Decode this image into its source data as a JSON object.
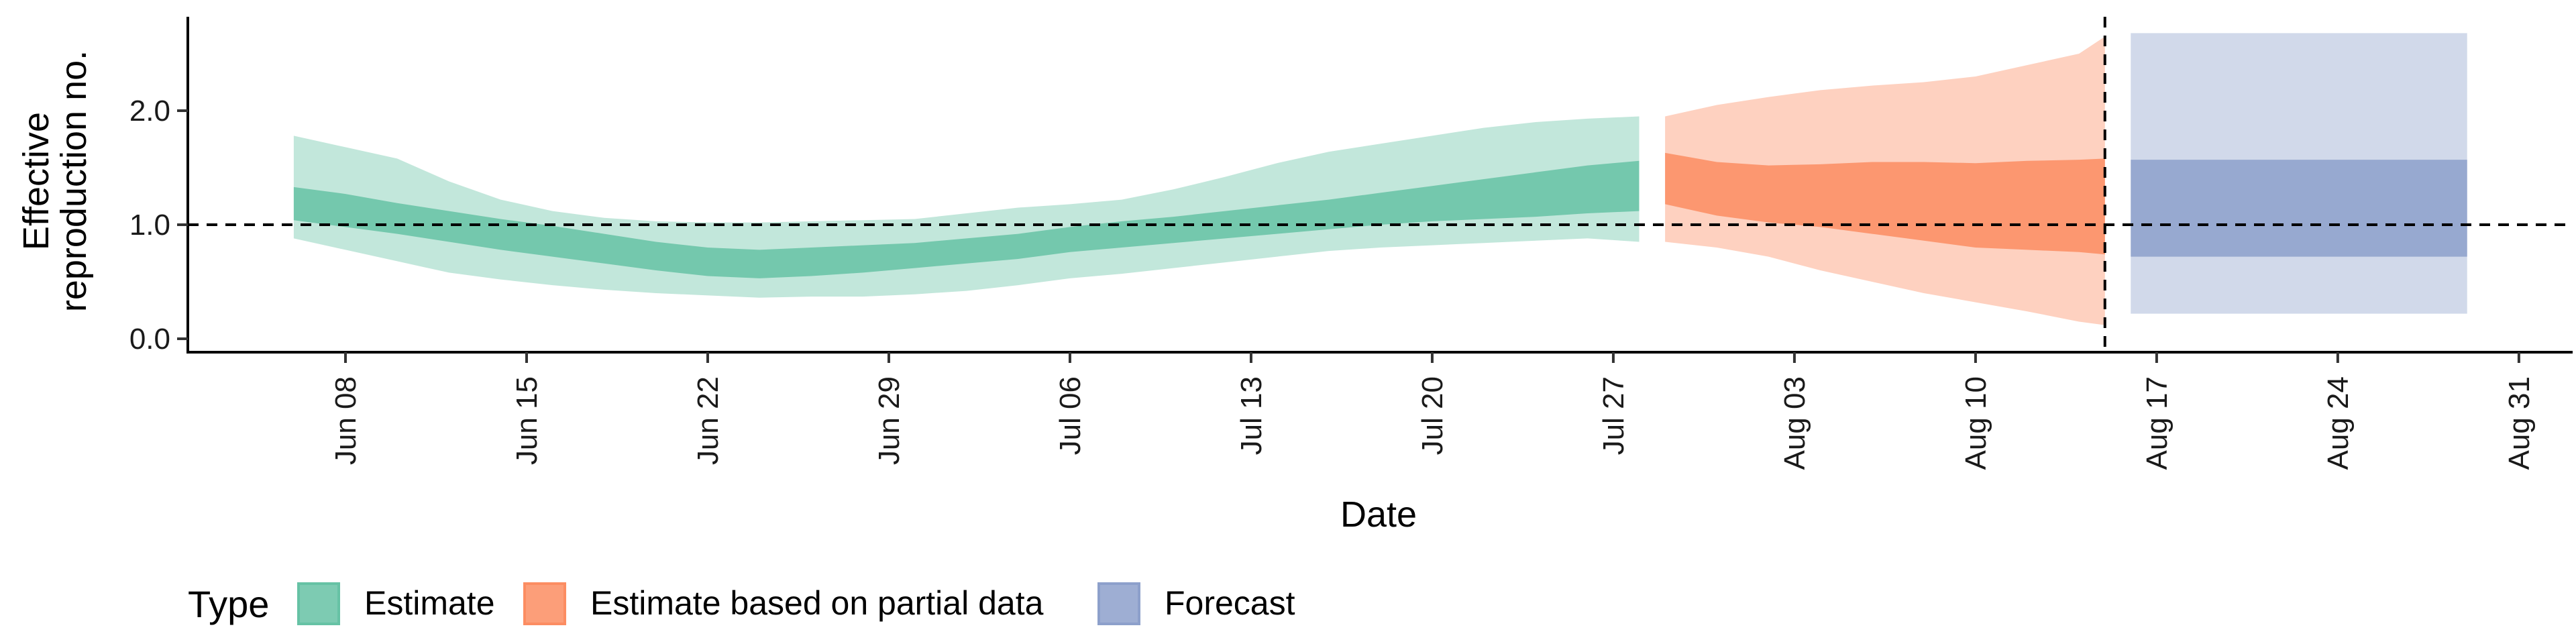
{
  "chart_data": {
    "type": "area",
    "xlabel": "Date",
    "ylabel_lines": [
      "Effective",
      "reproduction no."
    ],
    "x_range": [
      "2020-06-02",
      "2020-09-02"
    ],
    "ylim": [
      -0.1,
      2.8
    ],
    "y_ticks": [
      0.0,
      1.0,
      2.0
    ],
    "y_tick_labels": [
      "0.0",
      "1.0",
      "2.0"
    ],
    "x_ticks": [
      "2020-06-08",
      "2020-06-15",
      "2020-06-22",
      "2020-06-29",
      "2020-07-06",
      "2020-07-13",
      "2020-07-20",
      "2020-07-27",
      "2020-08-03",
      "2020-08-10",
      "2020-08-17",
      "2020-08-24",
      "2020-08-31"
    ],
    "x_tick_labels": [
      "Jun 08",
      "Jun 15",
      "Jun 22",
      "Jun 29",
      "Jul 06",
      "Jul 13",
      "Jul 20",
      "Jul 27",
      "Aug 03",
      "Aug 10",
      "Aug 17",
      "Aug 24",
      "Aug 31"
    ],
    "reference_line_y": 1.0,
    "forecast_start_line": "2020-08-15",
    "grid": false,
    "legend_placement": "bottom",
    "legend_title": "Type",
    "series": [
      {
        "name": "Estimate",
        "color": "#66c2a5",
        "x": [
          "2020-06-06",
          "2020-06-08",
          "2020-06-10",
          "2020-06-12",
          "2020-06-14",
          "2020-06-16",
          "2020-06-18",
          "2020-06-20",
          "2020-06-22",
          "2020-06-24",
          "2020-06-26",
          "2020-06-28",
          "2020-06-30",
          "2020-07-02",
          "2020-07-04",
          "2020-07-06",
          "2020-07-08",
          "2020-07-10",
          "2020-07-12",
          "2020-07-14",
          "2020-07-16",
          "2020-07-18",
          "2020-07-20",
          "2020-07-22",
          "2020-07-24",
          "2020-07-26",
          "2020-07-28"
        ],
        "lower90": [
          0.88,
          0.78,
          0.68,
          0.58,
          0.52,
          0.47,
          0.43,
          0.4,
          0.38,
          0.36,
          0.37,
          0.37,
          0.39,
          0.42,
          0.47,
          0.53,
          0.57,
          0.62,
          0.67,
          0.72,
          0.77,
          0.8,
          0.82,
          0.84,
          0.86,
          0.88,
          0.85
        ],
        "upper90": [
          1.78,
          1.68,
          1.58,
          1.38,
          1.22,
          1.12,
          1.06,
          1.03,
          1.02,
          1.02,
          1.03,
          1.04,
          1.05,
          1.1,
          1.15,
          1.18,
          1.22,
          1.31,
          1.42,
          1.54,
          1.64,
          1.71,
          1.78,
          1.85,
          1.9,
          1.93,
          1.95
        ],
        "lower50": [
          1.04,
          0.98,
          0.92,
          0.85,
          0.78,
          0.72,
          0.66,
          0.6,
          0.55,
          0.53,
          0.55,
          0.58,
          0.62,
          0.66,
          0.7,
          0.76,
          0.8,
          0.84,
          0.88,
          0.92,
          0.96,
          1.0,
          1.03,
          1.05,
          1.07,
          1.1,
          1.12
        ],
        "upper50": [
          1.33,
          1.27,
          1.19,
          1.12,
          1.05,
          0.99,
          0.92,
          0.85,
          0.8,
          0.78,
          0.8,
          0.82,
          0.84,
          0.88,
          0.92,
          0.98,
          1.03,
          1.07,
          1.12,
          1.17,
          1.22,
          1.28,
          1.34,
          1.4,
          1.46,
          1.52,
          1.56
        ]
      },
      {
        "name": "Estimate based on partial data",
        "color": "#fc8d62",
        "x": [
          "2020-07-29",
          "2020-07-31",
          "2020-08-02",
          "2020-08-04",
          "2020-08-06",
          "2020-08-08",
          "2020-08-10",
          "2020-08-12",
          "2020-08-14",
          "2020-08-15"
        ],
        "lower90": [
          0.85,
          0.8,
          0.72,
          0.6,
          0.5,
          0.4,
          0.32,
          0.24,
          0.15,
          0.12
        ],
        "upper90": [
          1.95,
          2.05,
          2.12,
          2.18,
          2.22,
          2.25,
          2.3,
          2.4,
          2.5,
          2.65
        ],
        "lower50": [
          1.18,
          1.08,
          1.02,
          0.98,
          0.92,
          0.86,
          0.8,
          0.78,
          0.76,
          0.74
        ],
        "upper50": [
          1.63,
          1.55,
          1.52,
          1.53,
          1.55,
          1.55,
          1.54,
          1.56,
          1.57,
          1.58
        ]
      },
      {
        "name": "Forecast",
        "color": "#8da0cb",
        "x": [
          "2020-08-16",
          "2020-08-29"
        ],
        "lower90": [
          0.22,
          0.22
        ],
        "upper90": [
          2.68,
          2.68
        ],
        "lower50": [
          0.72,
          0.72
        ],
        "upper50": [
          1.57,
          1.57
        ]
      }
    ]
  }
}
